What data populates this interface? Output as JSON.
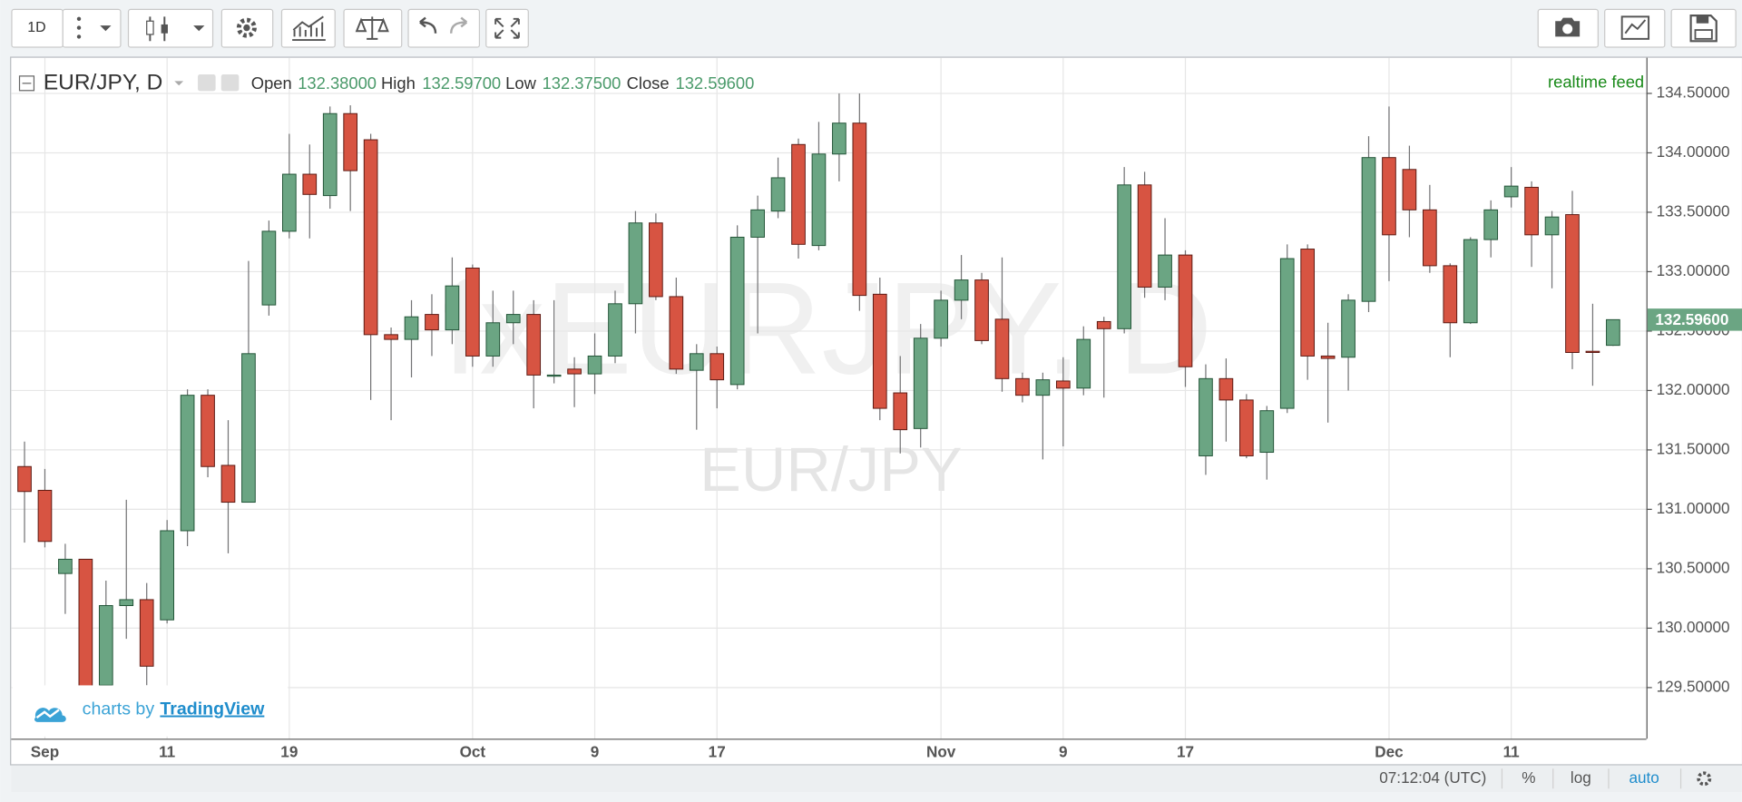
{
  "toolbar": {
    "interval": "1D"
  },
  "legend": {
    "symbol": "EUR/JPY, D",
    "open_label": "Open",
    "open": "132.38000",
    "high_label": "High",
    "high": "132.59700",
    "low_label": "Low",
    "low": "132.37500",
    "close_label": "Close",
    "close": "132.59600"
  },
  "feed": "realtime feed",
  "watermark": {
    "main": "fxEURJPY, D",
    "sub": "EUR/JPY"
  },
  "branding": {
    "prefix": "charts by",
    "link": "TradingView"
  },
  "status_bar": {
    "time": "07:12:04 (UTC)",
    "percent": "%",
    "log": "log",
    "auto": "auto"
  },
  "chart_data": {
    "type": "candlestick",
    "categories": [
      null,
      "Sep",
      null,
      null,
      null,
      null,
      null,
      "11",
      null,
      null,
      null,
      null,
      null,
      "19",
      null,
      null,
      null,
      null,
      null,
      null,
      null,
      null,
      "Oct",
      null,
      null,
      null,
      null,
      null,
      "9",
      null,
      null,
      null,
      null,
      null,
      "17",
      null,
      null,
      null,
      null,
      null,
      null,
      null,
      null,
      null,
      null,
      "Nov",
      null,
      null,
      null,
      null,
      null,
      "9",
      null,
      null,
      null,
      null,
      null,
      "17",
      null,
      null,
      null,
      null,
      null,
      null,
      null,
      null,
      null,
      "Dec",
      null,
      null,
      null,
      null,
      null,
      "11",
      null,
      null,
      null,
      null,
      null
    ],
    "open": [
      131.36,
      131.16,
      130.46,
      130.58,
      129.52,
      130.19,
      130.24,
      130.07,
      130.82,
      131.96,
      131.37,
      131.06,
      132.72,
      133.34,
      133.82,
      133.64,
      134.33,
      134.11,
      132.47,
      132.43,
      132.64,
      132.51,
      133.03,
      132.29,
      132.57,
      132.64,
      132.12,
      132.18,
      132.14,
      132.29,
      132.73,
      133.41,
      132.79,
      132.17,
      132.31,
      132.05,
      133.29,
      133.51,
      134.07,
      133.22,
      133.99,
      134.25,
      132.81,
      131.98,
      131.68,
      132.44,
      132.76,
      132.93,
      132.6,
      132.1,
      131.96,
      132.08,
      132.02,
      132.58,
      132.52,
      133.73,
      132.87,
      133.14,
      131.45,
      132.1,
      131.92,
      131.48,
      131.85,
      133.19,
      132.29,
      132.28,
      132.75,
      133.96,
      133.86,
      133.52,
      133.05,
      132.57,
      133.27,
      133.63,
      133.71,
      133.31,
      133.48,
      132.33,
      132.38
    ],
    "high": [
      131.57,
      131.34,
      130.71,
      130.58,
      130.4,
      131.08,
      130.38,
      130.91,
      132.01,
      132.01,
      131.75,
      133.09,
      133.43,
      134.16,
      134.07,
      134.39,
      134.4,
      134.16,
      132.53,
      132.76,
      132.81,
      133.12,
      133.06,
      132.84,
      132.84,
      132.76,
      132.76,
      132.28,
      132.48,
      132.84,
      133.51,
      133.49,
      132.95,
      132.39,
      132.37,
      133.39,
      133.64,
      133.96,
      134.12,
      134.26,
      134.5,
      134.5,
      132.95,
      132.29,
      132.56,
      132.84,
      133.14,
      132.99,
      133.12,
      132.15,
      132.15,
      132.28,
      132.54,
      132.62,
      133.88,
      133.84,
      133.45,
      133.18,
      132.22,
      132.27,
      131.97,
      131.87,
      133.23,
      133.23,
      132.57,
      132.81,
      134.14,
      134.39,
      134.06,
      133.73,
      133.07,
      133.29,
      133.6,
      133.88,
      133.76,
      133.51,
      133.68,
      132.73,
      132.597
    ],
    "low": [
      130.72,
      130.68,
      130.12,
      129.45,
      129.49,
      129.91,
      129.52,
      130.04,
      130.69,
      131.27,
      130.63,
      131.06,
      132.63,
      133.28,
      133.28,
      133.53,
      133.51,
      131.92,
      131.75,
      132.11,
      132.29,
      132.39,
      132.2,
      132.2,
      132.39,
      131.85,
      132.06,
      131.86,
      131.97,
      132.23,
      132.48,
      132.76,
      132.14,
      131.67,
      131.85,
      132.01,
      132.48,
      133.45,
      133.11,
      133.18,
      133.76,
      132.67,
      131.75,
      131.47,
      131.52,
      132.37,
      132.6,
      132.39,
      131.99,
      131.9,
      131.42,
      131.53,
      131.96,
      131.94,
      132.48,
      132.78,
      132.76,
      132.03,
      131.29,
      131.57,
      131.43,
      131.25,
      131.81,
      132.09,
      131.73,
      132.0,
      132.66,
      132.92,
      133.29,
      132.99,
      132.28,
      132.56,
      133.12,
      133.54,
      133.04,
      132.86,
      132.18,
      132.04,
      132.375
    ],
    "close": [
      131.15,
      130.73,
      130.58,
      129.49,
      130.19,
      130.24,
      129.68,
      130.82,
      131.96,
      131.36,
      131.06,
      132.31,
      133.34,
      133.82,
      133.65,
      134.33,
      133.85,
      132.47,
      132.43,
      132.62,
      132.51,
      132.88,
      132.29,
      132.57,
      132.64,
      132.13,
      132.13,
      132.14,
      132.29,
      132.73,
      133.41,
      132.79,
      132.18,
      132.31,
      132.09,
      133.29,
      133.52,
      133.79,
      133.23,
      133.99,
      134.25,
      132.8,
      131.85,
      131.67,
      132.44,
      132.76,
      132.93,
      132.42,
      132.1,
      131.96,
      132.09,
      132.02,
      132.43,
      132.52,
      133.73,
      132.87,
      133.14,
      132.2,
      132.1,
      131.92,
      131.45,
      131.83,
      133.11,
      132.29,
      132.27,
      132.76,
      133.96,
      133.31,
      133.52,
      133.05,
      132.57,
      133.27,
      133.52,
      133.72,
      133.31,
      133.46,
      132.32,
      132.32,
      132.596
    ],
    "up_color": "#6ba583",
    "down_color": "#d75442",
    "ylim": [
      129.07,
      134.8
    ],
    "yticks": [
      {
        "value": 129.5,
        "label": "129.50000"
      },
      {
        "value": 130,
        "label": "130.00000"
      },
      {
        "value": 130.5,
        "label": "130.50000"
      },
      {
        "value": 131,
        "label": "131.00000"
      },
      {
        "value": 131.5,
        "label": "131.50000"
      },
      {
        "value": 132,
        "label": "132.00000"
      },
      {
        "value": 132.5,
        "label": "132.50000"
      },
      {
        "value": 133,
        "label": "133.00000"
      },
      {
        "value": 133.5,
        "label": "133.50000"
      },
      {
        "value": 134,
        "label": "134.00000"
      },
      {
        "value": 134.5,
        "label": "134.50000"
      }
    ],
    "grid": true,
    "last_value_label": "132.59600"
  }
}
